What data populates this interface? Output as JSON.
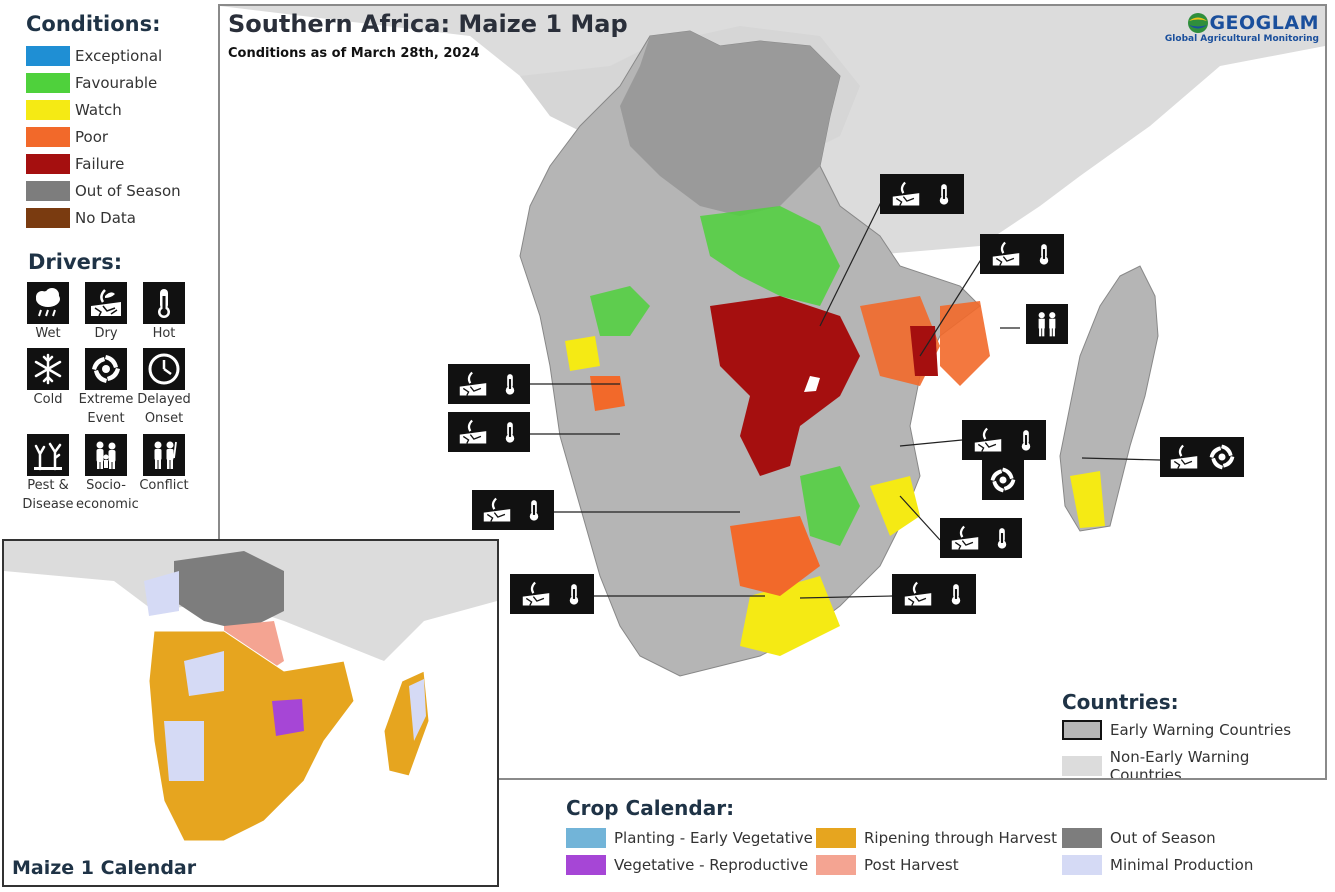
{
  "map": {
    "title": "Southern Africa: Maize 1 Map",
    "subtitle": "Conditions as of March 28th, 2024",
    "logo_name": "GEOGLAM",
    "logo_sub": "Global Agricultural Monitoring"
  },
  "conditions_legend": {
    "title": "Conditions:",
    "items": [
      {
        "label": "Exceptional",
        "color": "#1f8fd4"
      },
      {
        "label": "Favourable",
        "color": "#4fd13c"
      },
      {
        "label": "Watch",
        "color": "#f5ea14"
      },
      {
        "label": "Poor",
        "color": "#f2692a"
      },
      {
        "label": "Failure",
        "color": "#a50f0f"
      },
      {
        "label": "Out of Season",
        "color": "#7d7d7d"
      },
      {
        "label": "No Data",
        "color": "#7a3b10"
      }
    ]
  },
  "drivers_legend": {
    "title": "Drivers:",
    "items": [
      {
        "label": "Wet",
        "icon": "rain-cloud-icon"
      },
      {
        "label": "Dry",
        "icon": "dry-cracked-soil-icon"
      },
      {
        "label": "Hot",
        "icon": "thermometer-icon"
      },
      {
        "label": "Cold",
        "icon": "snowflake-icon"
      },
      {
        "label": "Extreme Event",
        "icon": "cyclone-icon"
      },
      {
        "label": "Delayed Onset",
        "icon": "clock-icon"
      },
      {
        "label": "Pest & Disease",
        "icon": "dead-tree-icon"
      },
      {
        "label": "Socio-economic",
        "icon": "family-icon"
      },
      {
        "label": "Conflict",
        "icon": "soldiers-icon"
      }
    ]
  },
  "countries_legend": {
    "title": "Countries:",
    "items": [
      {
        "label": "Early Warning Countries",
        "color": "#b5b5b5"
      },
      {
        "label": "Non-Early Warning Countries",
        "color": "#dcdcdc"
      }
    ]
  },
  "inset": {
    "label": "Maize 1 Calendar"
  },
  "crop_calendar": {
    "title": "Crop Calendar:",
    "items": [
      {
        "label": "Planting - Early Vegetative",
        "color": "#72b4d8"
      },
      {
        "label": "Vegetative - Reproductive",
        "color": "#a646d6"
      },
      {
        "label": "Ripening through Harvest",
        "color": "#e6a51f"
      },
      {
        "label": "Post Harvest",
        "color": "#f4a492"
      },
      {
        "label": "Out of Season",
        "color": "#7d7d7d"
      },
      {
        "label": "Minimal Production",
        "color": "#d5daf5"
      }
    ]
  }
}
